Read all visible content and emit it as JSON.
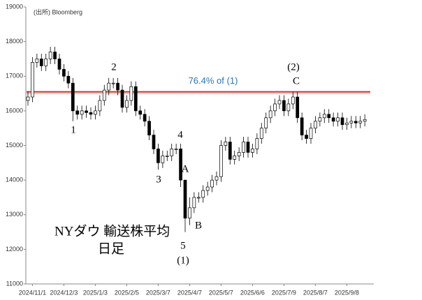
{
  "chart_data": {
    "type": "candlestick",
    "source": "(出所) Bloomberg",
    "title": "NYダウ 輸送株平均",
    "subtitle": "日足",
    "categories": [
      null,
      "2024/11/1",
      null,
      null,
      null,
      null,
      null,
      null,
      "2024/12/3",
      null,
      null,
      null,
      null,
      null,
      null,
      "2025/1/3",
      null,
      null,
      null,
      null,
      null,
      null,
      "2025/2/5",
      null,
      null,
      null,
      null,
      null,
      null,
      "2025/3/7",
      null,
      null,
      null,
      null,
      null,
      null,
      "2025/4/7",
      null,
      null,
      null,
      null,
      null,
      null,
      "2025/5/7",
      null,
      null,
      null,
      null,
      null,
      null,
      "2025/6/6",
      null,
      null,
      null,
      null,
      null,
      null,
      "2025/7/9",
      null,
      null,
      null,
      null,
      null,
      null,
      "2025/8/7",
      null,
      null,
      null,
      null,
      null,
      null,
      "2025/9/8",
      null,
      null,
      null,
      null
    ],
    "open": [
      16300,
      16400,
      17400,
      17500,
      17300,
      17500,
      17700,
      17500,
      17200,
      17000,
      16800,
      16000,
      15900,
      16000,
      15950,
      15900,
      16000,
      16300,
      16600,
      16800,
      16800,
      16600,
      16100,
      16300,
      16700,
      16000,
      15900,
      15700,
      15300,
      14900,
      14500,
      14700,
      14700,
      14900,
      14900,
      14000,
      12900,
      13200,
      13500,
      13500,
      13700,
      13800,
      14000,
      14100,
      15000,
      15100,
      14600,
      14700,
      14800,
      15100,
      14800,
      14900,
      15200,
      15500,
      15800,
      16000,
      16200,
      16300,
      16000,
      16200,
      16400,
      15800,
      15300,
      15200,
      15500,
      15700,
      15800,
      15900,
      15800,
      15700,
      15800,
      15600,
      15650,
      15700,
      15650,
      15700
    ],
    "high": [
      16550,
      17550,
      17650,
      17650,
      17650,
      17850,
      17850,
      17650,
      17350,
      17150,
      16950,
      16150,
      16150,
      16150,
      16100,
      16150,
      16450,
      16750,
      16950,
      16950,
      16950,
      16750,
      16450,
      16850,
      16850,
      16150,
      16050,
      15850,
      15450,
      15050,
      14850,
      14850,
      15050,
      15050,
      15050,
      14000,
      13500,
      13650,
      13650,
      13850,
      13950,
      14150,
      14250,
      15150,
      15250,
      15250,
      14850,
      14950,
      15250,
      15250,
      15050,
      15350,
      15650,
      15950,
      16150,
      16350,
      16450,
      16450,
      16350,
      16550,
      16550,
      15950,
      15450,
      15650,
      15850,
      15950,
      16050,
      16050,
      15950,
      15950,
      15950,
      15800,
      15850,
      15850,
      15850,
      15900
    ],
    "low": [
      16150,
      16250,
      17250,
      17150,
      17150,
      17350,
      17350,
      17050,
      16850,
      16650,
      15700,
      15750,
      15750,
      15800,
      15750,
      15750,
      15850,
      16150,
      16450,
      16650,
      16450,
      15950,
      15950,
      16150,
      15850,
      15750,
      15550,
      15150,
      14750,
      14300,
      14350,
      14550,
      14550,
      14750,
      13800,
      12500,
      12700,
      13050,
      13350,
      13350,
      13550,
      13650,
      13850,
      13950,
      14850,
      14450,
      14450,
      14550,
      14650,
      14650,
      14650,
      14750,
      15050,
      15350,
      15650,
      15850,
      16050,
      15850,
      15850,
      16050,
      15650,
      15150,
      15050,
      15050,
      15350,
      15550,
      15650,
      15650,
      15550,
      15550,
      15450,
      15450,
      15500,
      15500,
      15500,
      15550
    ],
    "close": [
      16400,
      17400,
      17500,
      17300,
      17500,
      17700,
      17500,
      17200,
      17000,
      16800,
      16000,
      15900,
      16000,
      15950,
      15900,
      16000,
      16300,
      16600,
      16800,
      16800,
      16600,
      16100,
      16300,
      16700,
      16000,
      15900,
      15700,
      15300,
      14900,
      14500,
      14700,
      14700,
      14900,
      14900,
      14000,
      12900,
      13200,
      13500,
      13500,
      13700,
      13800,
      14000,
      14100,
      15000,
      15100,
      14600,
      14700,
      14800,
      15100,
      14800,
      14900,
      15200,
      15500,
      15800,
      16000,
      16200,
      16300,
      16000,
      16200,
      16400,
      15800,
      15300,
      15200,
      15500,
      15700,
      15800,
      15900,
      15800,
      15700,
      15800,
      15600,
      15650,
      15700,
      15650,
      15700,
      15750
    ],
    "up_color": "#ffffff",
    "down_color": "#000000",
    "ylim": [
      11000,
      19000
    ],
    "yticks": [
      11000,
      12000,
      13000,
      14000,
      15000,
      16000,
      17000,
      18000,
      19000
    ],
    "grid": false,
    "reference_line": {
      "value": 16550,
      "label": "76.4% of (1)",
      "color": "#c0392b",
      "label_color": "#2e75b6"
    },
    "wave_labels": [
      "1",
      "2",
      "3",
      "4",
      "5",
      "(1)",
      "A",
      "B",
      "(2)",
      "C"
    ]
  }
}
